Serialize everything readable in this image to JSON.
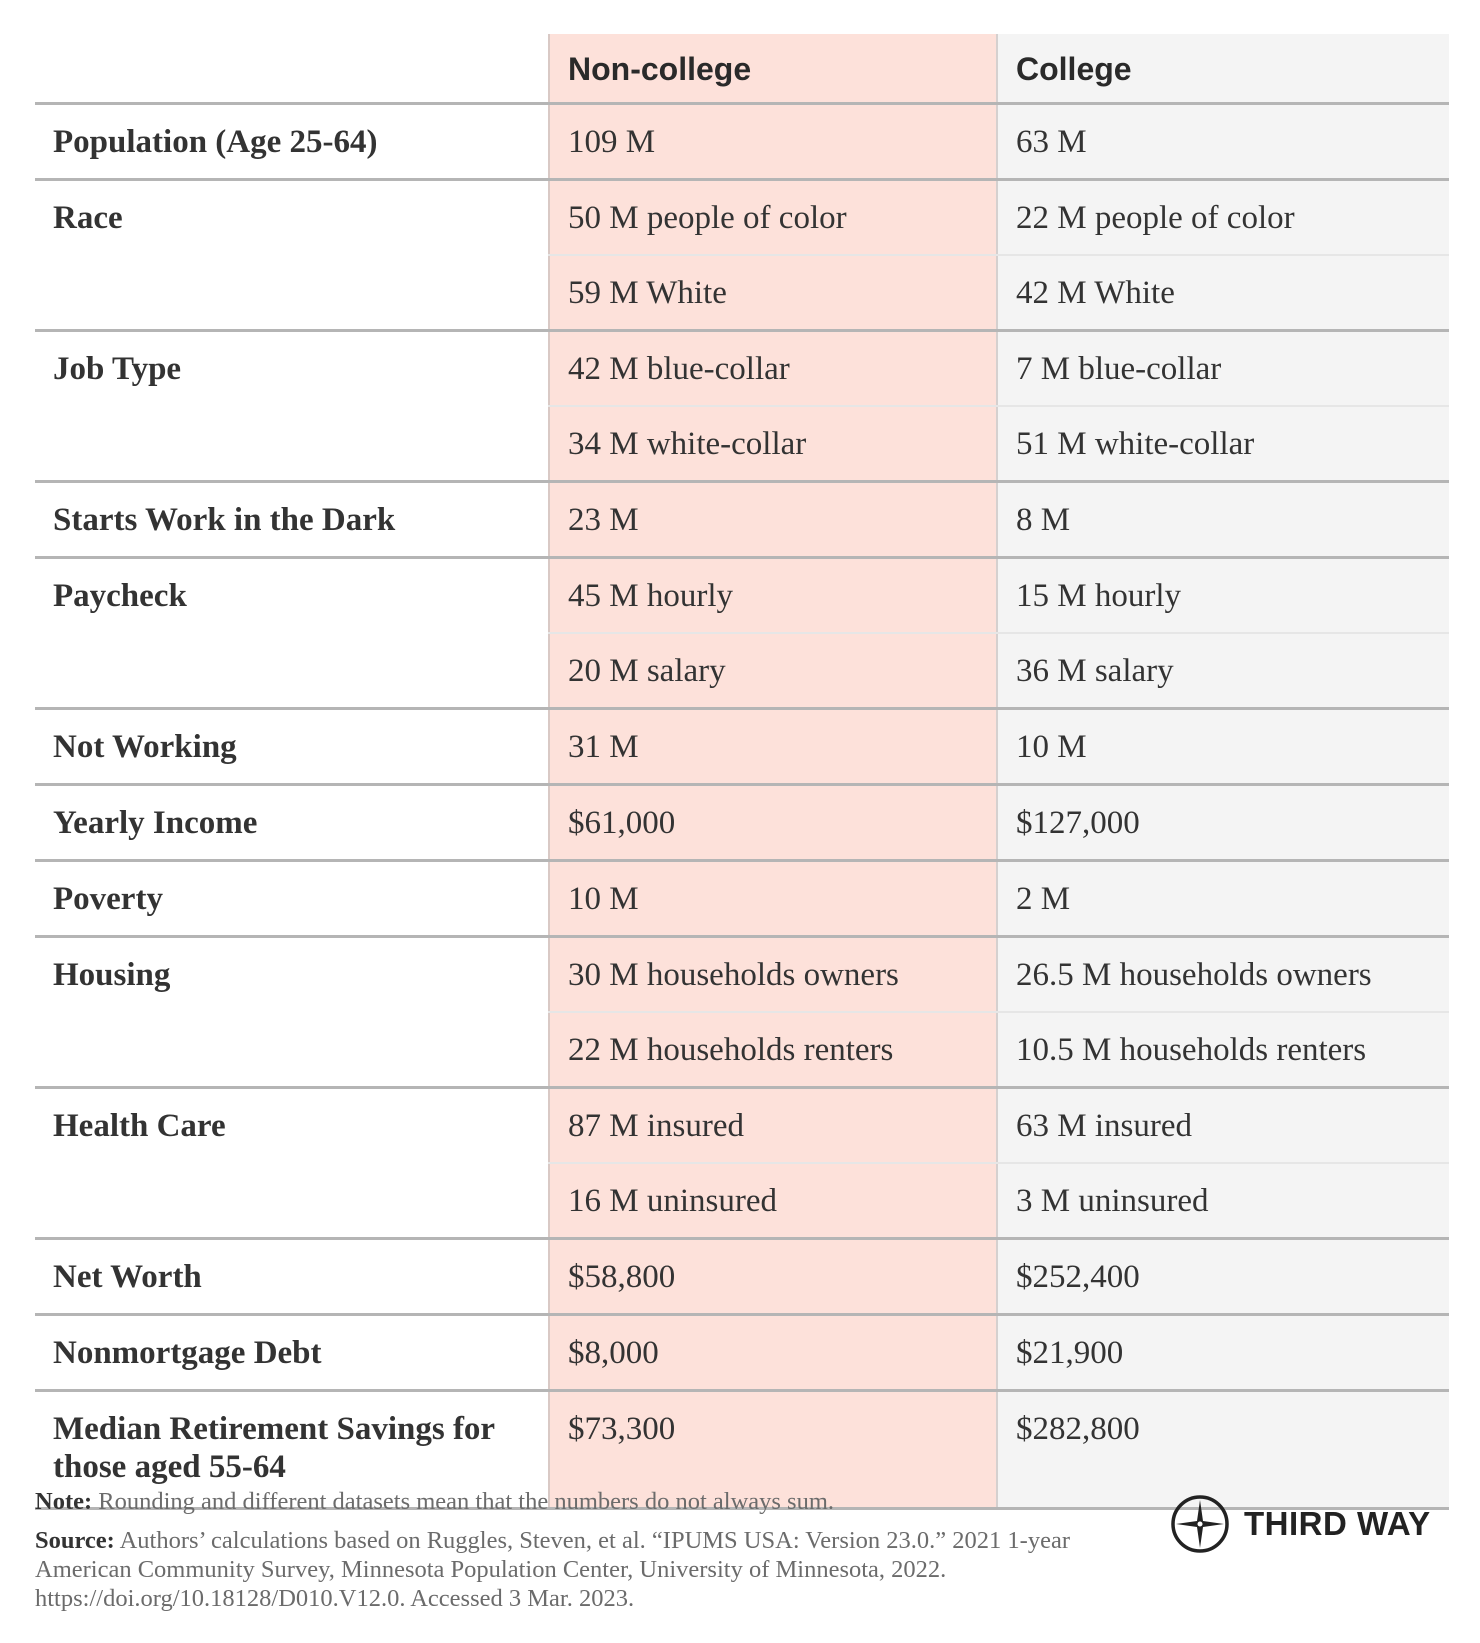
{
  "columns": {
    "noncollege": "Non-college",
    "college": "College"
  },
  "colors": {
    "noncollege_bg": "#fde1da",
    "college_bg": "#f4f4f4",
    "rule": "#b5b5b5"
  },
  "rows": [
    {
      "label": "Population (Age 25-64)",
      "values": [
        [
          "109 M",
          "63 M"
        ]
      ]
    },
    {
      "label": "Race",
      "values": [
        [
          "50 M people of color",
          "22 M people of color"
        ],
        [
          "59 M White",
          "42 M White"
        ]
      ]
    },
    {
      "label": "Job Type",
      "values": [
        [
          "42 M blue-collar",
          "7 M blue-collar"
        ],
        [
          "34 M white-collar",
          "51 M white-collar"
        ]
      ]
    },
    {
      "label": "Starts Work in the Dark",
      "values": [
        [
          "23 M",
          "8 M"
        ]
      ]
    },
    {
      "label": "Paycheck",
      "values": [
        [
          "45 M hourly",
          "15 M hourly"
        ],
        [
          "20 M salary",
          "36 M salary"
        ]
      ]
    },
    {
      "label": "Not Working",
      "values": [
        [
          "31 M",
          "10 M"
        ]
      ]
    },
    {
      "label": "Yearly Income",
      "values": [
        [
          "$61,000",
          "$127,000"
        ]
      ]
    },
    {
      "label": "Poverty",
      "values": [
        [
          "10 M",
          "2 M"
        ]
      ]
    },
    {
      "label": "Housing",
      "values": [
        [
          "30 M households owners",
          "26.5 M households owners"
        ],
        [
          "22 M households renters",
          "10.5 M households renters"
        ]
      ]
    },
    {
      "label": "Health Care",
      "values": [
        [
          "87 M insured",
          "63 M insured"
        ],
        [
          "16 M uninsured",
          "3 M uninsured"
        ]
      ]
    },
    {
      "label": "Net Worth",
      "values": [
        [
          "$58,800",
          "$252,400"
        ]
      ]
    },
    {
      "label": "Nonmortgage Debt",
      "values": [
        [
          "$8,000",
          "$21,900"
        ]
      ]
    },
    {
      "label": "Median Retirement Savings for those aged 55-64",
      "values": [
        [
          "$73,300",
          "$282,800"
        ]
      ],
      "tall": true
    }
  ],
  "footer": {
    "note_label": "Note:",
    "note": " Rounding and different datasets mean that the numbers do not always sum.",
    "source_label": "Source:",
    "source": " Authors’ calculations based on Ruggles, Steven, et al. “IPUMS USA: Version 23.0.” 2021 1-year American Community Survey, Minnesota Population Center, University of Minnesota, 2022. https://doi.org/10.18128/D010.V12.0. Accessed 3 Mar. 2023."
  },
  "logo": {
    "text": "THIRD WAY",
    "icon": "compass-icon"
  }
}
